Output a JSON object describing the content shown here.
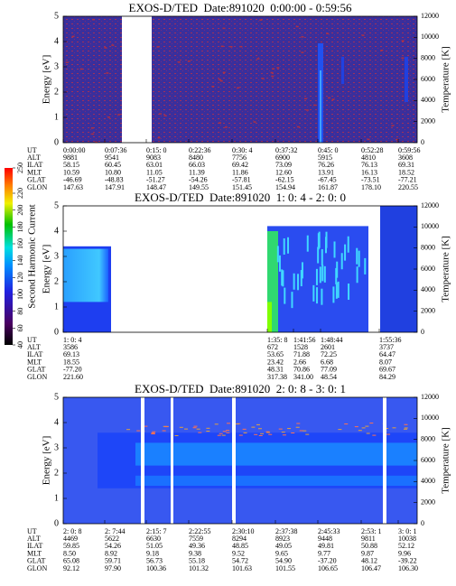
{
  "chart_data": [
    {
      "type": "spectrogram",
      "title": "EXOS-D/TED  Date:891020  0:00:00 - 0:59:56",
      "ylabel": "Energy [eV]",
      "y2label": "Temperature [K]",
      "ylim": [
        0,
        5
      ],
      "yticks": [
        0,
        1,
        2,
        3,
        4,
        5
      ],
      "y2lim": [
        0,
        12000
      ],
      "y2ticks": [
        0,
        2000,
        4000,
        6000,
        8000,
        10000,
        12000
      ],
      "table": {
        "row_labels": [
          "UT",
          "ALT",
          "ILAT",
          "MLT",
          "GLAT",
          "GLON"
        ],
        "rows": [
          [
            "0:00:00",
            "0:07:36",
            "0:15: 0",
            "0:22:36",
            "0:30: 4",
            "0:37:32",
            "0:45: 0",
            "0:52:28",
            "0:59:56"
          ],
          [
            "9881",
            "9541",
            "9083",
            "8480",
            "7756",
            "6900",
            "5915",
            "4810",
            "3608"
          ],
          [
            "58.15",
            "60.45",
            "63.01",
            "66.03",
            "69.42",
            "73.09",
            "76.26",
            "76.13",
            "69.31"
          ],
          [
            "10.59",
            "10.80",
            "11.05",
            "11.39",
            "11.86",
            "12.60",
            "13.91",
            "16.13",
            "18.52"
          ],
          [
            "-46.69",
            "-48.83",
            "-51.27",
            "-54.26",
            "-57.81",
            "-62.15",
            "-67.45",
            "-73.51",
            "-77.21"
          ],
          [
            "147.63",
            "147.91",
            "148.47",
            "149.55",
            "151.45",
            "154.94",
            "161.87",
            "178.10",
            "220.55"
          ]
        ]
      }
    },
    {
      "type": "spectrogram",
      "title": "EXOS-D/TED  Date:891020  1: 0: 4 - 2: 0: 0",
      "ylabel": "Energy [eV]",
      "y2label": "Temperature [K]",
      "ylim": [
        0,
        5
      ],
      "yticks": [
        0,
        1,
        2,
        3,
        4,
        5
      ],
      "y2lim": [
        0,
        12000
      ],
      "y2ticks": [
        0,
        2000,
        4000,
        6000,
        8000,
        10000,
        12000
      ],
      "table": {
        "row_labels": [
          "UT",
          "ALT",
          "ILAT",
          "MLT",
          "GLAT",
          "GLON"
        ],
        "rows": [
          [
            "1: 0: 4",
            "1:35: 8",
            "1:41:56",
            "1:48:44",
            "1:55:36"
          ],
          [
            "3586",
            "672",
            "1528",
            "2601",
            "3737"
          ],
          [
            "69.13",
            "53.65",
            "71.88",
            "72.25",
            "64.47"
          ],
          [
            "18.55",
            "23.42",
            "2.66",
            "6.68",
            "8.07"
          ],
          [
            "-77.20",
            "48.31",
            "70.86",
            "77.09",
            "69.67"
          ],
          [
            "221.60",
            "317.38",
            "341.00",
            "48.54",
            "84.29"
          ]
        ]
      }
    },
    {
      "type": "spectrogram",
      "title": "EXOS-D/TED  Date:891020  2: 0: 8 - 3: 0: 1",
      "ylabel": "Energy [eV]",
      "y2label": "Temperature [K]",
      "ylim": [
        0,
        5
      ],
      "yticks": [
        0,
        1,
        2,
        3,
        4,
        5
      ],
      "y2lim": [
        0,
        12000
      ],
      "y2ticks": [
        0,
        2000,
        4000,
        6000,
        8000,
        10000,
        12000
      ],
      "table": {
        "row_labels": [
          "UT",
          "ALT",
          "ILAT",
          "MLT",
          "GLAT",
          "GLON"
        ],
        "rows": [
          [
            "2: 0: 8",
            "2: 7:44",
            "2:15: 7",
            "2:22:55",
            "2:30:10",
            "2:37:38",
            "2:45:33",
            "2:53: 1",
            "3: 0: 1"
          ],
          [
            "4469",
            "5622",
            "6630",
            "7559",
            "8294",
            "8923",
            "9448",
            "9811",
            "10038"
          ],
          [
            "59.85",
            "54.26",
            "51.05",
            "49.36",
            "48.85",
            "49.05",
            "49.81",
            "50.88",
            "52.12"
          ],
          [
            "8.50",
            "8.92",
            "9.18",
            "9.38",
            "9.52",
            "9.65",
            "9.77",
            "9.87",
            "9.96"
          ],
          [
            "65.08",
            "59.71",
            "56.73",
            "55.18",
            "54.72",
            "54.90",
            "-37.20",
            "48.12",
            "-39.22"
          ],
          [
            "92.12",
            "97.90",
            "100.36",
            "101.32",
            "101.63",
            "101.55",
            "106.65",
            "106.47",
            "106.30"
          ]
        ]
      }
    }
  ],
  "colorbar": {
    "label": "Second Harmonic Current",
    "lim": [
      40,
      250
    ],
    "ticks": [
      40,
      60,
      80,
      100,
      120,
      140,
      160,
      180,
      200,
      220,
      250
    ]
  }
}
